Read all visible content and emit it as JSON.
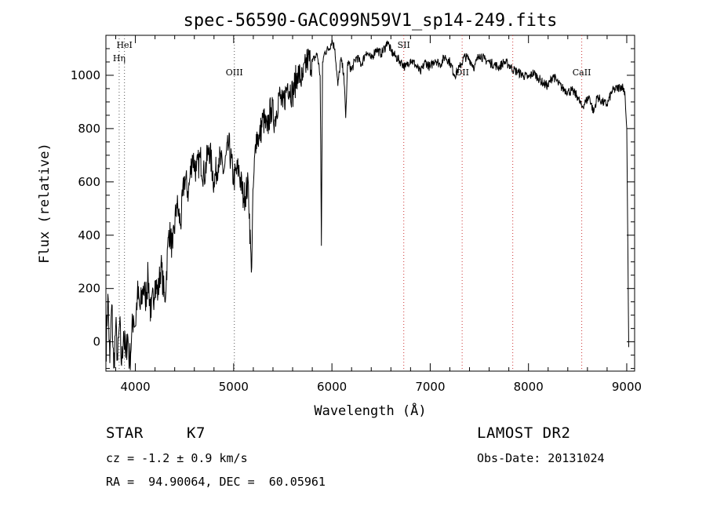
{
  "chart_data": {
    "type": "line",
    "title": "spec-56590-GAC099N59V1_sp14-249.fits",
    "xlabel": "Wavelength (Å)",
    "ylabel": "Flux (relative)",
    "xlim": [
      3700,
      9080
    ],
    "ylim": [
      -110,
      1150
    ],
    "x_ticks": [
      4000,
      5000,
      6000,
      7000,
      8000,
      9000
    ],
    "y_ticks": [
      0,
      200,
      400,
      600,
      800,
      1000
    ],
    "grid": false,
    "series": [
      {
        "x": [
          3700,
          3720,
          3740,
          3760,
          3780,
          3800,
          3820,
          3840,
          3860,
          3880,
          3900,
          3920,
          3940,
          3960,
          3980,
          4000,
          4020,
          4050,
          4080,
          4100,
          4130,
          4160,
          4200,
          4230,
          4260,
          4300,
          4340,
          4380,
          4420,
          4460,
          4500,
          4540,
          4580,
          4620,
          4660,
          4700,
          4750,
          4800,
          4850,
          4900,
          4950,
          5000,
          5050,
          5100,
          5150,
          5180,
          5200,
          5230,
          5260,
          5300,
          5340,
          5380,
          5420,
          5460,
          5500,
          5550,
          5600,
          5650,
          5700,
          5750,
          5800,
          5850,
          5880,
          5893,
          5905,
          5930,
          5970,
          6000,
          6030,
          6060,
          6090,
          6120,
          6140,
          6160,
          6200,
          6250,
          6300,
          6350,
          6400,
          6450,
          6500,
          6550,
          6563,
          6600,
          6650,
          6700,
          6750,
          6800,
          6850,
          6900,
          6950,
          7000,
          7050,
          7100,
          7150,
          7200,
          7250,
          7300,
          7350,
          7400,
          7450,
          7500,
          7550,
          7600,
          7650,
          7700,
          7750,
          7800,
          7850,
          7900,
          7950,
          8000,
          8050,
          8100,
          8150,
          8200,
          8250,
          8300,
          8350,
          8400,
          8450,
          8500,
          8542,
          8580,
          8620,
          8662,
          8700,
          8750,
          8800,
          8850,
          8900,
          8950,
          8980,
          9000,
          9020
        ],
        "values": [
          -50,
          180,
          -80,
          140,
          -100,
          60,
          -70,
          70,
          -90,
          40,
          -60,
          30,
          -80,
          10,
          100,
          60,
          180,
          120,
          210,
          160,
          240,
          90,
          230,
          180,
          290,
          150,
          420,
          350,
          520,
          440,
          620,
          560,
          700,
          640,
          690,
          620,
          730,
          600,
          690,
          640,
          740,
          610,
          650,
          540,
          590,
          260,
          580,
          780,
          760,
          840,
          790,
          880,
          830,
          930,
          880,
          970,
          930,
          1010,
          980,
          1060,
          1050,
          1080,
          1000,
          360,
          1050,
          1090,
          1100,
          1130,
          1100,
          960,
          1060,
          1010,
          840,
          1050,
          1020,
          1070,
          1040,
          1090,
          1060,
          1100,
          1080,
          1110,
          1130,
          1090,
          1070,
          1050,
          1030,
          1060,
          1040,
          1010,
          1050,
          1030,
          1060,
          1040,
          1070,
          1050,
          1000,
          1030,
          1070,
          1060,
          1030,
          1080,
          1060,
          1050,
          1040,
          1030,
          1050,
          1040,
          1020,
          1010,
          1000,
          990,
          1010,
          990,
          970,
          960,
          1000,
          970,
          950,
          940,
          940,
          920,
          880,
          900,
          920,
          860,
          920,
          900,
          890,
          940,
          950,
          960,
          940,
          800,
          -20
        ]
      }
    ],
    "lines": [
      {
        "wavelength": 3889,
        "label": "HeI"
      },
      {
        "wavelength": 3835,
        "label": "Hη"
      },
      {
        "wavelength": 5007,
        "label": "OIII"
      },
      {
        "wavelength": 6731,
        "label": "SII"
      },
      {
        "wavelength": 7325,
        "label": "OII"
      },
      {
        "wavelength": 7840,
        "label": ""
      },
      {
        "wavelength": 8542,
        "label": "CaII"
      }
    ]
  },
  "info": {
    "object_type": "STAR",
    "subclass": "K7",
    "survey": "LAMOST DR2",
    "cz": "cz = -1.2 ± 0.9 km/s",
    "obs_date": "Obs-Date: 20131024",
    "coords": "RA =  94.90064, DEC =  60.05961"
  }
}
